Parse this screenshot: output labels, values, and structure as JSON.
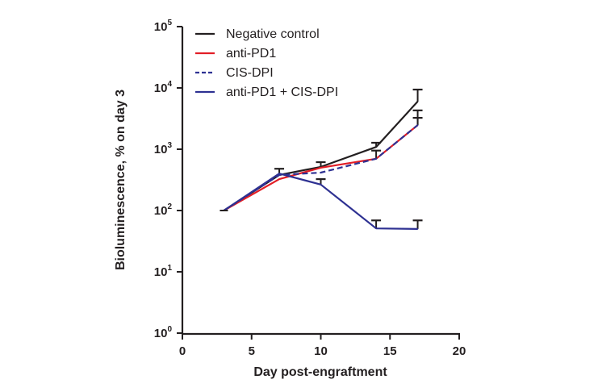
{
  "chart_data": {
    "type": "line",
    "title": "",
    "xlabel": "Day post-engraftment",
    "ylabel": "Bioluminescence, % on day 3",
    "xlim": [
      0,
      20
    ],
    "ylim": [
      1,
      100000
    ],
    "yscale": "log",
    "x_ticks": [
      0,
      5,
      10,
      15,
      20
    ],
    "x_tick_labels": [
      "0",
      "5",
      "10",
      "15",
      "20"
    ],
    "y_ticks": [
      1,
      10,
      100,
      1000,
      10000,
      100000
    ],
    "y_tick_labels": [
      {
        "base": "10",
        "exp": "0"
      },
      {
        "base": "10",
        "exp": "1"
      },
      {
        "base": "10",
        "exp": "2"
      },
      {
        "base": "10",
        "exp": "3"
      },
      {
        "base": "10",
        "exp": "4"
      },
      {
        "base": "10",
        "exp": "5"
      }
    ],
    "grid": false,
    "legend_position": "top-left",
    "x": [
      3,
      7,
      10,
      14,
      17
    ],
    "series": [
      {
        "name": "Negative control",
        "color": "#231f20",
        "dash": false,
        "values": [
          100,
          380,
          515,
          1090,
          6000
        ],
        "error_upper": [
          null,
          480,
          615,
          1275,
          9400
        ]
      },
      {
        "name": "anti-PD1",
        "color": "#e21e26",
        "dash": false,
        "values": [
          100,
          325,
          500,
          700,
          2470
        ],
        "error_upper": [
          null,
          null,
          null,
          null,
          3250
        ]
      },
      {
        "name": "CIS-DPI",
        "color": "#2e3192",
        "dash": true,
        "values": [
          100,
          380,
          415,
          700,
          2470
        ],
        "error_upper": [
          null,
          null,
          null,
          950,
          4300
        ]
      },
      {
        "name": "anti-PD1 + CIS-DPI",
        "color": "#2e3192",
        "dash": false,
        "values": [
          100,
          400,
          265,
          51,
          50
        ],
        "error_upper": [
          null,
          null,
          325,
          69,
          69
        ]
      }
    ]
  }
}
